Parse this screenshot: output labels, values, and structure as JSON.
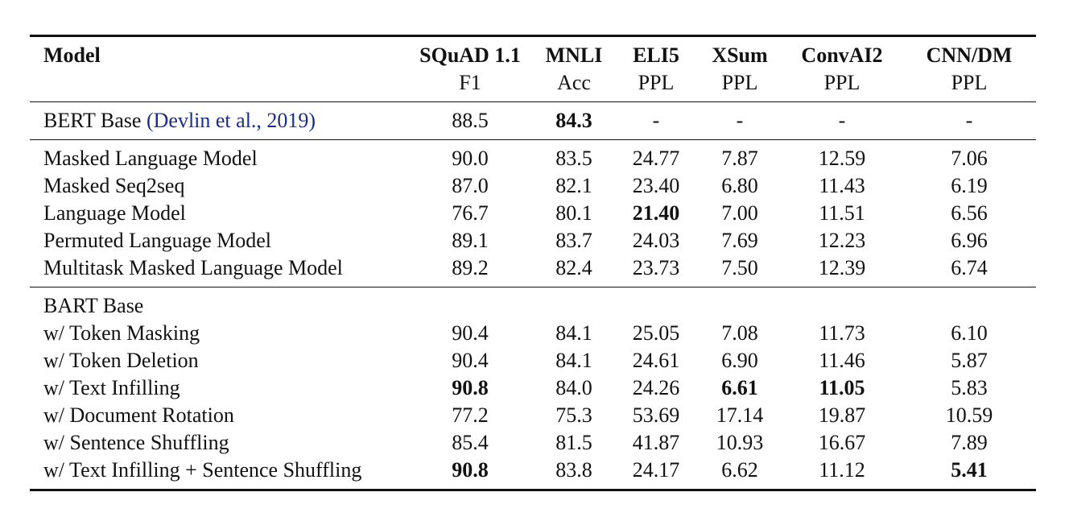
{
  "columns": [
    {
      "name": "Model",
      "metric": ""
    },
    {
      "name": "SQuAD 1.1",
      "metric": "F1"
    },
    {
      "name": "MNLI",
      "metric": "Acc"
    },
    {
      "name": "ELI5",
      "metric": "PPL"
    },
    {
      "name": "XSum",
      "metric": "PPL"
    },
    {
      "name": "ConvAI2",
      "metric": "PPL"
    },
    {
      "name": "CNN/DM",
      "metric": "PPL"
    }
  ],
  "baseline": {
    "model": "BERT Base",
    "citation": "(Devlin et al., 2019)",
    "values": [
      "88.5",
      "84.3",
      "-",
      "-",
      "-",
      "-"
    ]
  },
  "group1": [
    {
      "model": "Masked Language Model",
      "values": [
        "90.0",
        "83.5",
        "24.77",
        "7.87",
        "12.59",
        "7.06"
      ]
    },
    {
      "model": "Masked Seq2seq",
      "values": [
        "87.0",
        "82.1",
        "23.40",
        "6.80",
        "11.43",
        "6.19"
      ]
    },
    {
      "model": "Language Model",
      "values": [
        "76.7",
        "80.1",
        "21.40",
        "7.00",
        "11.51",
        "6.56"
      ]
    },
    {
      "model": "Permuted Language Model",
      "values": [
        "89.1",
        "83.7",
        "24.03",
        "7.69",
        "12.23",
        "6.96"
      ]
    },
    {
      "model": "Multitask Masked Language Model",
      "values": [
        "89.2",
        "82.4",
        "23.73",
        "7.50",
        "12.39",
        "6.74"
      ]
    }
  ],
  "group2_title": "BART Base",
  "group2": [
    {
      "model": "w/ Token Masking",
      "values": [
        "90.4",
        "84.1",
        "25.05",
        "7.08",
        "11.73",
        "6.10"
      ]
    },
    {
      "model": "w/ Token Deletion",
      "values": [
        "90.4",
        "84.1",
        "24.61",
        "6.90",
        "11.46",
        "5.87"
      ]
    },
    {
      "model": "w/ Text Infilling",
      "values": [
        "90.8",
        "84.0",
        "24.26",
        "6.61",
        "11.05",
        "5.83"
      ]
    },
    {
      "model": "w/ Document Rotation",
      "values": [
        "77.2",
        "75.3",
        "53.69",
        "17.14",
        "19.87",
        "10.59"
      ]
    },
    {
      "model": "w/ Sentence Shuffling",
      "values": [
        "85.4",
        "81.5",
        "41.87",
        "10.93",
        "16.67",
        "7.89"
      ]
    },
    {
      "model": "w/ Text Infilling + Sentence Shuffling",
      "values": [
        "90.8",
        "83.8",
        "24.17",
        "6.62",
        "11.12",
        "5.41"
      ]
    }
  ]
}
